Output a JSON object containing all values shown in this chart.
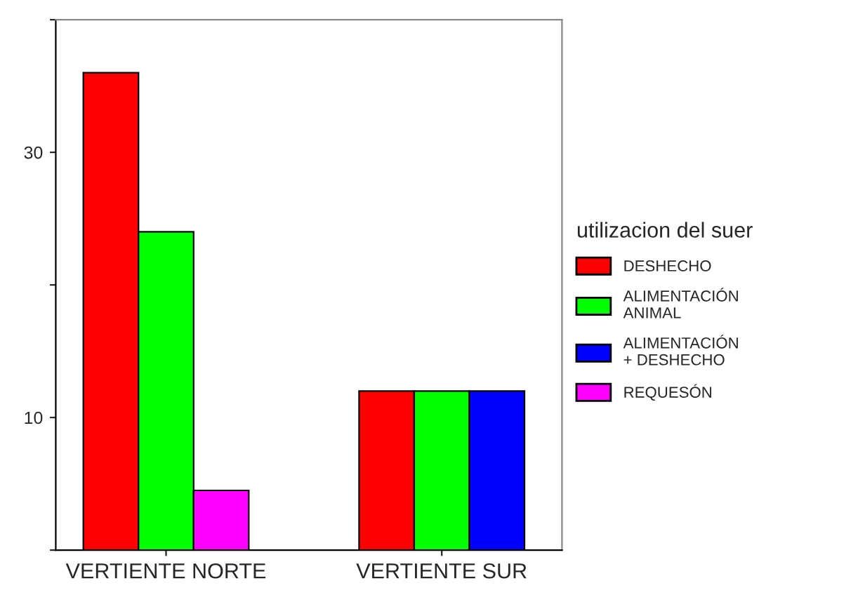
{
  "chart_data": {
    "type": "bar",
    "categories": [
      "VERTIENTE NORTE",
      "VERTIENTE SUR"
    ],
    "series": [
      {
        "name": "DESHECHO",
        "color": "#ff0000",
        "values": [
          36,
          12
        ]
      },
      {
        "name": "ALIMENTACIÓN ANIMAL",
        "color": "#00ff00",
        "values": [
          24,
          12
        ]
      },
      {
        "name": "ALIMENTACIÓN + DESHECHO",
        "color": "#0000ff",
        "values": [
          null,
          12
        ]
      },
      {
        "name": "REQUESÓN",
        "color": "#ff00ff",
        "values": [
          4.5,
          null
        ]
      }
    ],
    "legend_title": "utilizacion del suer",
    "legend": "right",
    "ylim": [
      0,
      40
    ],
    "yticks": [
      {
        "value": 0,
        "label": null
      },
      10,
      {
        "value": 20,
        "label": null
      },
      30,
      {
        "value": 40,
        "label": null
      }
    ],
    "grid": false
  }
}
